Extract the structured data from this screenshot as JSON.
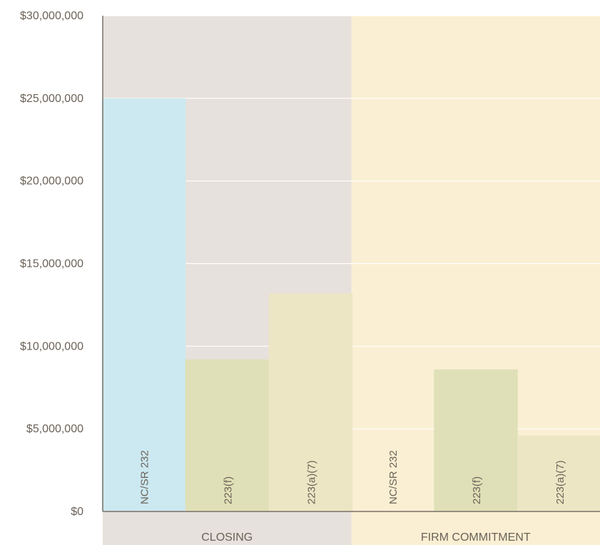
{
  "chart_data": {
    "type": "bar",
    "title": "",
    "xlabel": "",
    "ylabel": "",
    "ylim": [
      0,
      30000000
    ],
    "y_ticks": [
      "$0",
      "$5,000,000",
      "$10,000,000",
      "$15,000,000",
      "$20,000,000",
      "$25,000,000",
      "$30,000,000"
    ],
    "y_tick_values": [
      0,
      5000000,
      10000000,
      15000000,
      20000000,
      25000000,
      30000000
    ],
    "grid": true,
    "groups": [
      {
        "label": "CLOSING",
        "background": "#e6e1dc",
        "bars": [
          {
            "label": "NC/SR 232",
            "value": 25000000,
            "color": "#cce9f1"
          },
          {
            "label": "223(f)",
            "value": 9200000,
            "color": "#dfe0b7"
          },
          {
            "label": "223(a)(7)",
            "value": 13200000,
            "color": "#ede6c4"
          }
        ]
      },
      {
        "label": "FIRM COMMITMENT",
        "background": "#faefd3",
        "bars": [
          {
            "label": "NC/SR 232",
            "value": 0,
            "color": "#cce9f1"
          },
          {
            "label": "223(f)",
            "value": 8600000,
            "color": "#dfe0b7"
          },
          {
            "label": "223(a)(7)",
            "value": 4600000,
            "color": "#ede6c4"
          }
        ]
      }
    ]
  }
}
